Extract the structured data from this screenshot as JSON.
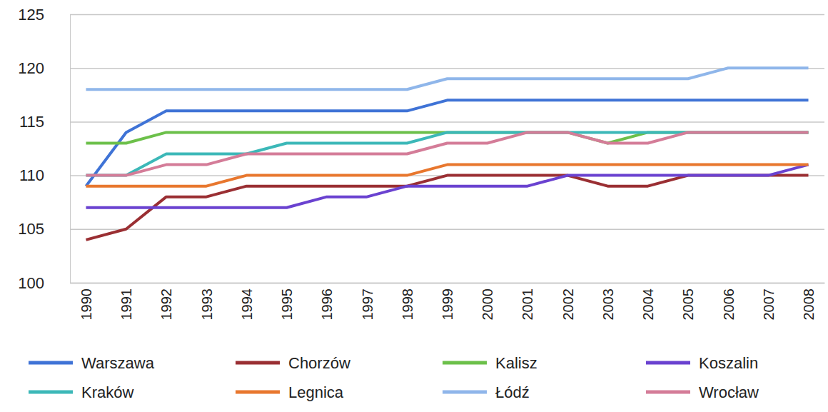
{
  "chart_data": {
    "type": "line",
    "categories": [
      "1990",
      "1991",
      "1992",
      "1993",
      "1994",
      "1995",
      "1996",
      "1997",
      "1998",
      "1999",
      "2000",
      "2001",
      "2002",
      "2003",
      "2004",
      "2005",
      "2006",
      "2007",
      "2008"
    ],
    "series": [
      {
        "name": "Warszawa",
        "color": "#3f73d6",
        "values": [
          109,
          114,
          116,
          116,
          116,
          116,
          116,
          116,
          116,
          117,
          117,
          117,
          117,
          117,
          117,
          117,
          117,
          117,
          117
        ]
      },
      {
        "name": "Chorzów",
        "color": "#9a2f33",
        "values": [
          104,
          105,
          108,
          108,
          109,
          109,
          109,
          109,
          109,
          110,
          110,
          110,
          110,
          109,
          109,
          110,
          110,
          110,
          110
        ]
      },
      {
        "name": "Kalisz",
        "color": "#6cc04a",
        "values": [
          113,
          113,
          114,
          114,
          114,
          114,
          114,
          114,
          114,
          114,
          114,
          114,
          114,
          113,
          114,
          114,
          114,
          114,
          114
        ]
      },
      {
        "name": "Koszalin",
        "color": "#6a42d0",
        "values": [
          107,
          107,
          107,
          107,
          107,
          107,
          108,
          108,
          109,
          109,
          109,
          109,
          110,
          110,
          110,
          110,
          110,
          110,
          111
        ]
      },
      {
        "name": "Kraków",
        "color": "#3cb8b8",
        "values": [
          110,
          110,
          112,
          112,
          112,
          113,
          113,
          113,
          113,
          114,
          114,
          114,
          114,
          114,
          114,
          114,
          114,
          114,
          114
        ]
      },
      {
        "name": "Legnica",
        "color": "#e8772e",
        "values": [
          109,
          109,
          109,
          109,
          110,
          110,
          110,
          110,
          110,
          111,
          111,
          111,
          111,
          111,
          111,
          111,
          111,
          111,
          111
        ]
      },
      {
        "name": "Łódź",
        "color": "#8fb6ea",
        "values": [
          118,
          118,
          118,
          118,
          118,
          118,
          118,
          118,
          118,
          119,
          119,
          119,
          119,
          119,
          119,
          119,
          120,
          120,
          120
        ]
      },
      {
        "name": "Wrocław",
        "color": "#d47c98",
        "values": [
          110,
          110,
          111,
          111,
          112,
          112,
          112,
          112,
          112,
          113,
          113,
          114,
          114,
          113,
          113,
          114,
          114,
          114,
          114
        ]
      }
    ],
    "ylim": [
      100,
      125
    ],
    "yticks": [
      100,
      105,
      110,
      115,
      120,
      125
    ],
    "grid": true,
    "legend": "bottom"
  }
}
